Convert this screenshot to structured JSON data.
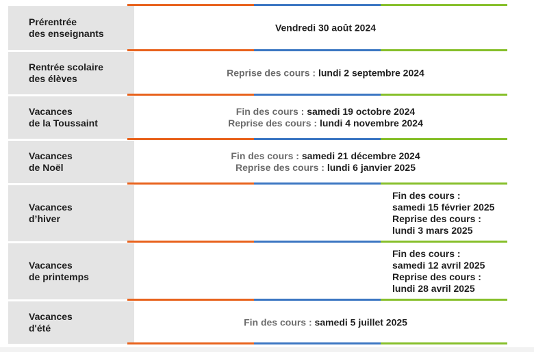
{
  "colors": {
    "label_bg": "#e4e4e4",
    "text_dark": "#1e1e1e",
    "text_muted": "#6b6b6b",
    "stripe_orange": "#e8621c",
    "stripe_blue": "#3b76c2",
    "stripe_green": "#86bf2a"
  },
  "rows": [
    {
      "label": [
        "Prérentrée",
        "des enseignants"
      ],
      "lines": [
        [
          "",
          "Vendredi 30 août 2024"
        ]
      ]
    },
    {
      "label": [
        "Rentrée scolaire",
        "des élèves"
      ],
      "lines": [
        [
          "Reprise des cours :",
          "lundi 2 septembre 2024"
        ]
      ]
    },
    {
      "label": [
        "Vacances",
        "de la Toussaint"
      ],
      "lines": [
        [
          "Fin des cours :",
          "samedi 19 octobre 2024"
        ],
        [
          "Reprise des cours :",
          "lundi 4 novembre 2024"
        ]
      ]
    },
    {
      "label": [
        "Vacances",
        "de Noël"
      ],
      "lines": [
        [
          "Fin des cours :",
          "samedi 21 décembre 2024"
        ],
        [
          "Reprise des cours :",
          "lundi 6 janvier 2025"
        ]
      ]
    },
    {
      "label": [
        "Vacances",
        "d’hiver"
      ],
      "stacked": [
        "Fin des cours :",
        "samedi 15 février 2025",
        "Reprise des cours :",
        "lundi 3 mars 2025"
      ]
    },
    {
      "label": [
        "Vacances",
        "de printemps"
      ],
      "stacked": [
        "Fin des cours :",
        "samedi 12 avril 2025",
        "Reprise des cours :",
        "lundi 28 avril 2025"
      ]
    },
    {
      "label": [
        "Vacances",
        "d'été"
      ],
      "lines": [
        [
          "Fin des cours :",
          "samedi 5 juillet 2025"
        ]
      ]
    }
  ]
}
